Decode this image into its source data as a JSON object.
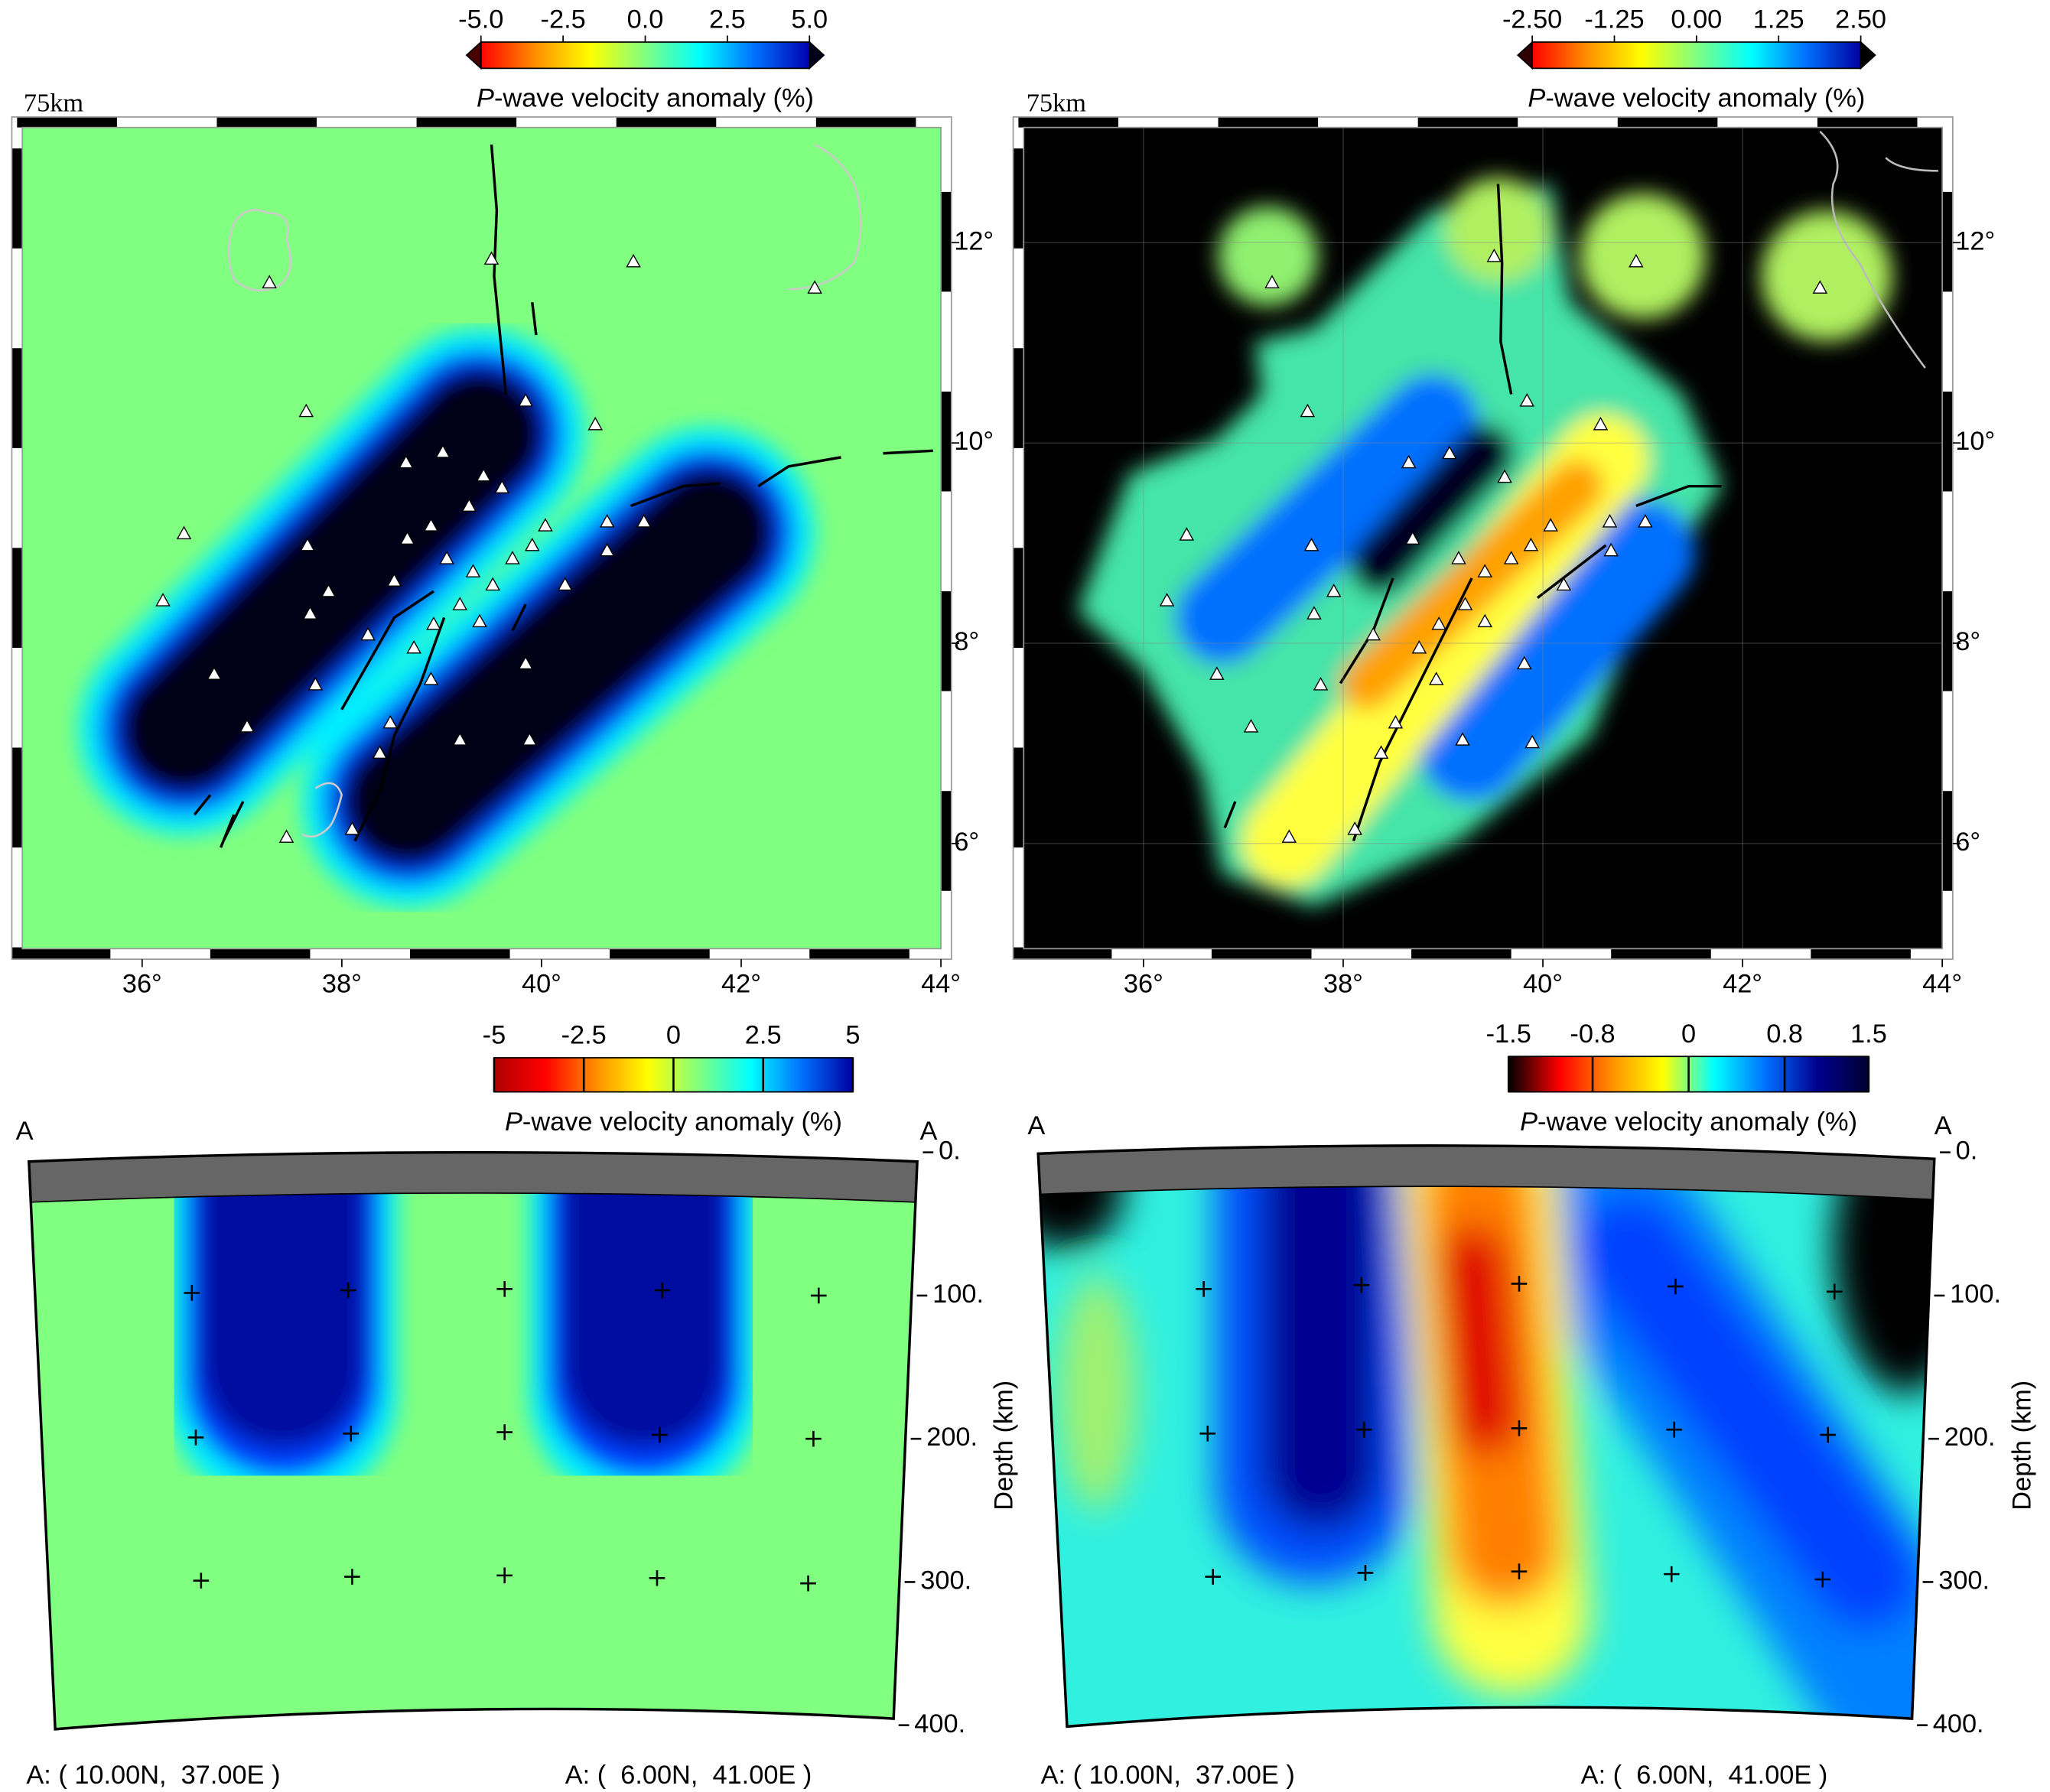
{
  "chart_data": [
    {
      "type": "map",
      "title": "75km",
      "colorbar": {
        "label_italic": "P",
        "label": "-wave velocity anomaly (%)",
        "lim": [
          -5,
          5
        ],
        "extend": true,
        "colors": [
          "#4a0000",
          "#ff0000",
          "#ff9000",
          "#ffff00",
          "#80ff80",
          "#00ffff",
          "#0070ff",
          "#0000b0",
          "#000018"
        ],
        "ticks": [
          {
            "value": -5,
            "label": "-5.0"
          },
          -2.5,
          {
            "value": 0,
            "label": "0.0"
          },
          2.5,
          {
            "value": 5,
            "label": "5.0"
          }
        ]
      },
      "xlim": [
        34.8,
        44
      ],
      "xticks": [
        {
          "value": 36,
          "label": "36°"
        },
        {
          "value": 38,
          "label": "38°"
        },
        {
          "value": 40,
          "label": "40°"
        },
        {
          "value": 42,
          "label": "42°"
        },
        {
          "value": 44,
          "label": "44°"
        }
      ],
      "ylim": [
        4.95,
        13.15
      ],
      "yticks": [
        {
          "value": 6,
          "label": "6°"
        },
        {
          "value": 8,
          "label": "8°"
        },
        {
          "value": 10,
          "label": "10°"
        },
        {
          "value": 12,
          "label": "12°"
        }
      ],
      "grid": false
    },
    {
      "type": "map",
      "title": "75km",
      "colorbar": {
        "label_italic": "P",
        "label": "-wave velocity anomaly (%)",
        "lim": [
          -2.5,
          2.5
        ],
        "extend": true,
        "colors": [
          "#300000",
          "#ff0000",
          "#ff9000",
          "#ffff00",
          "#80ff80",
          "#00ffff",
          "#0070ff",
          "#0000a0",
          "#000000"
        ],
        "ticks": [
          {
            "value": -2.5,
            "label": "-2.50"
          },
          -1.25,
          {
            "value": 0,
            "label": "0.00"
          },
          1.25,
          {
            "value": 2.5,
            "label": "2.50"
          }
        ]
      },
      "xlim": [
        34.8,
        44
      ],
      "xticks": [
        {
          "value": 36,
          "label": "36°"
        },
        {
          "value": 38,
          "label": "38°"
        },
        {
          "value": 40,
          "label": "40°"
        },
        {
          "value": 42,
          "label": "42°"
        },
        {
          "value": 44,
          "label": "44°"
        }
      ],
      "ylim": [
        4.95,
        13.15
      ],
      "yticks": [
        {
          "value": 6,
          "label": "6°"
        },
        {
          "value": 8,
          "label": "8°"
        },
        {
          "value": 10,
          "label": "10°"
        },
        {
          "value": 12,
          "label": "12°"
        }
      ],
      "grid": true
    },
    {
      "type": "section",
      "start_label": "A",
      "end_label": "A",
      "ylabel": "Depth (km)",
      "colorbar": {
        "label_italic": "P",
        "label": "-wave velocity anomaly (%)",
        "lim": [
          -5,
          5
        ],
        "extend": false,
        "colors": [
          "#b00000",
          "#ff0000",
          "#ff9000",
          "#ffff00",
          "#80ff80",
          "#00ffff",
          "#0070ff",
          "#0000a0"
        ],
        "ticks": [
          -5,
          -2.5,
          0,
          2.5,
          5
        ]
      },
      "ylim": [
        400,
        0
      ],
      "yticks": [
        {
          "value": 0,
          "label": "0."
        },
        {
          "value": 100,
          "label": "100."
        },
        {
          "value": 200,
          "label": "200."
        },
        {
          "value": 300,
          "label": "300."
        },
        {
          "value": 400,
          "label": "400."
        }
      ],
      "start": "A: ( 10.00N,  37.00E )",
      "end": "A: (  6.00N,  41.00E )"
    },
    {
      "type": "section",
      "start_label": "A",
      "end_label": "A",
      "ylabel": "Depth (km)",
      "colorbar": {
        "label_italic": "P",
        "label": "-wave velocity anomaly (%)",
        "lim": [
          -1.5,
          1.5
        ],
        "extend": false,
        "colors": [
          "#000000",
          "#ff0000",
          "#ff9000",
          "#ffff00",
          "#00ffff",
          "#0070ff",
          "#000090",
          "#000030"
        ],
        "ticks": [
          -1.5,
          -0.8,
          0,
          0.8,
          1.5
        ]
      },
      "ylim": [
        400,
        0
      ],
      "yticks": [
        {
          "value": 0,
          "label": "0."
        },
        {
          "value": 100,
          "label": "100."
        },
        {
          "value": 200,
          "label": "200."
        },
        {
          "value": 300,
          "label": "300."
        },
        {
          "value": 400,
          "label": "400."
        }
      ],
      "start": "A: ( 10.00N,  37.00E )",
      "end": "A: (  6.00N,  41.00E )"
    }
  ]
}
